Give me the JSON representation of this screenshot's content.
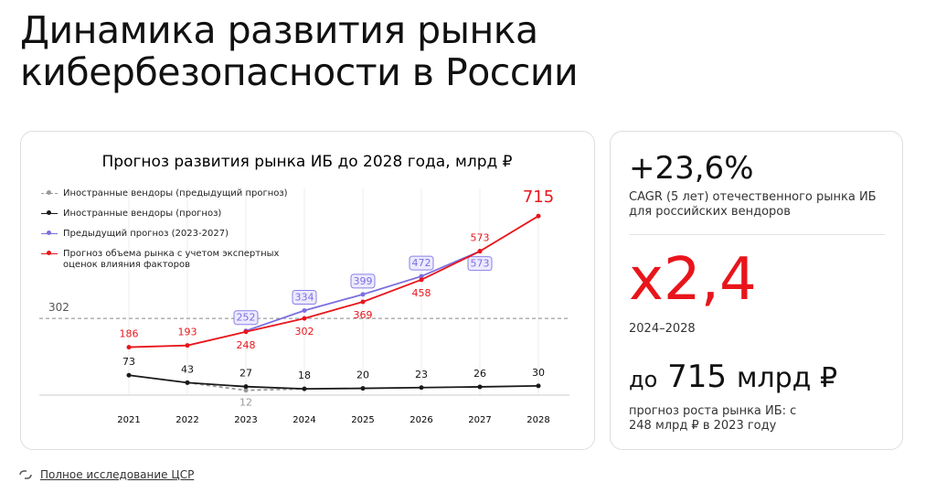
{
  "header": {
    "title": "Динамика развития рынка кибербезопасности в России"
  },
  "chart_data": {
    "type": "line",
    "title": "Прогноз развития рынка ИБ до 2028 года, млрд ₽",
    "categories": [
      "2021",
      "2022",
      "2023",
      "2024",
      "2025",
      "2026",
      "2027",
      "2028"
    ],
    "ylim": [
      0,
      760
    ],
    "reference_line": 302,
    "series": [
      {
        "name": "Иностранные вендоры (предыдущий прогноз)",
        "color": "#9a9a9a",
        "dashed": true,
        "values": [
          null,
          43,
          12,
          18,
          null,
          null,
          null,
          null
        ]
      },
      {
        "name": "Иностранные вендоры (прогноз)",
        "color": "#1a1a1a",
        "values": [
          73,
          43,
          27,
          18,
          20,
          23,
          26,
          30
        ]
      },
      {
        "name": "Предыдущий прогноз (2023-2027)",
        "color": "#7b6fe0",
        "values": [
          null,
          null,
          252,
          334,
          399,
          472,
          573,
          null
        ]
      },
      {
        "name": "Прогноз объема рынка с учетом экспертных оценок влияния факторов",
        "color": "#e8151b",
        "values": [
          186,
          193,
          248,
          302,
          369,
          458,
          573,
          715
        ]
      }
    ]
  },
  "side": {
    "stat1": "+23,6%",
    "stat1_note": "CAGR (5 лет) отечественного рынка ИБ для российских вендоров",
    "stat2": "x2,4",
    "stat2_note": "2024–2028",
    "stat3_prefix": "до",
    "stat3_value": "715",
    "stat3_unit": "млрд ₽",
    "stat3_note": "прогноз роста рынка ИБ: с 248 млрд ₽ в 2023 году"
  },
  "footer": {
    "link": "Полное исследование ЦСР"
  }
}
